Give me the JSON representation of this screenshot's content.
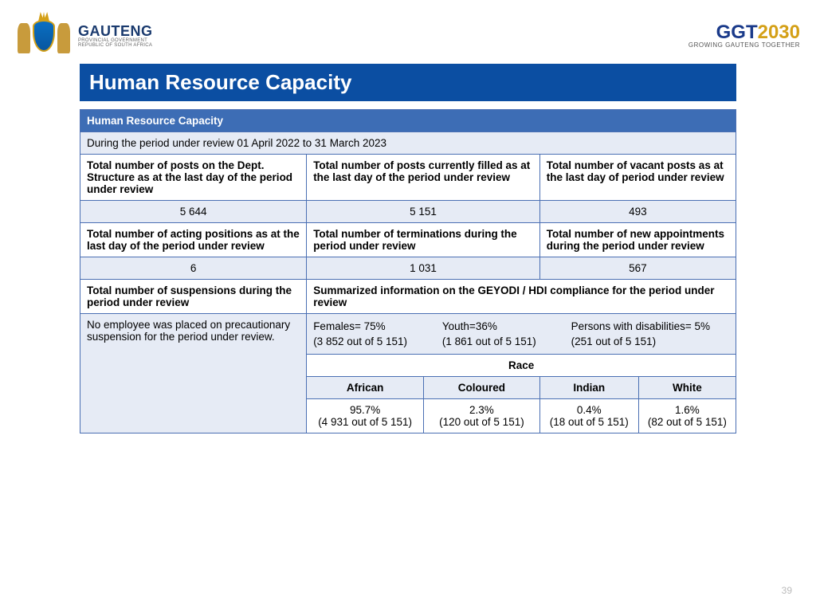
{
  "logos": {
    "gauteng_main": "GAUTENG",
    "gauteng_sub1": "PROVINCIAL GOVERNMENT",
    "gauteng_sub2": "REPUBLIC OF SOUTH AFRICA",
    "ggt_prefix": "GGT",
    "ggt_year": "2030",
    "ggt_sub": "GROWING GAUTENG TOGETHER"
  },
  "title": "Human Resource Capacity",
  "table": {
    "header": "Human Resource Capacity",
    "period": "During the period under review 01 April 2022 to 31 March  2023",
    "row1": {
      "c1_label": "Total number of posts on the Dept. Structure as at the last day of the period under review",
      "c2_label": "Total number of posts currently filled as at the last day of the period under review",
      "c3_label": "Total number of vacant posts as at the last day of period under review",
      "c1_val": "5 644",
      "c2_val": "5 151",
      "c3_val": "493"
    },
    "row2": {
      "c1_label": "Total number of acting positions as at the last day of the period under review",
      "c2_label": "Total number of terminations during the period under review",
      "c3_label": "Total number of new appointments during the period under review",
      "c1_val": "6",
      "c2_val": "1 031",
      "c3_val": "567"
    },
    "row3": {
      "c1_label": "Total number of suspensions during the period under review",
      "c2_label": "Summarized information on the GEYODI / HDI compliance for the period under review",
      "suspension_note": "No employee was placed on precautionary suspension for the period under review."
    },
    "geyodi": {
      "females_label": "Females= 75%",
      "females_detail": "(3 852 out of 5 151)",
      "youth_label": "Youth=36%",
      "youth_detail": "(1 861 out of 5 151)",
      "pwd_label": "Persons with disabilities= 5%",
      "pwd_detail": "(251 out of 5 151)"
    },
    "race": {
      "header": "Race",
      "cols": [
        "African",
        "Coloured",
        "Indian",
        "White"
      ],
      "pct": [
        "95.7%",
        "2.3%",
        "0.4%",
        "1.6%"
      ],
      "detail": [
        "(4 931 out of 5 151)",
        "(120 out of 5 151)",
        "(18 out of 5 151)",
        "(82 out of 5 151)"
      ]
    }
  },
  "page_number": "39",
  "colors": {
    "title_bg": "#0b4ea2",
    "header_bg": "#3d6db5",
    "light_bg": "#e6ebf5",
    "border": "#4a6fb3"
  }
}
